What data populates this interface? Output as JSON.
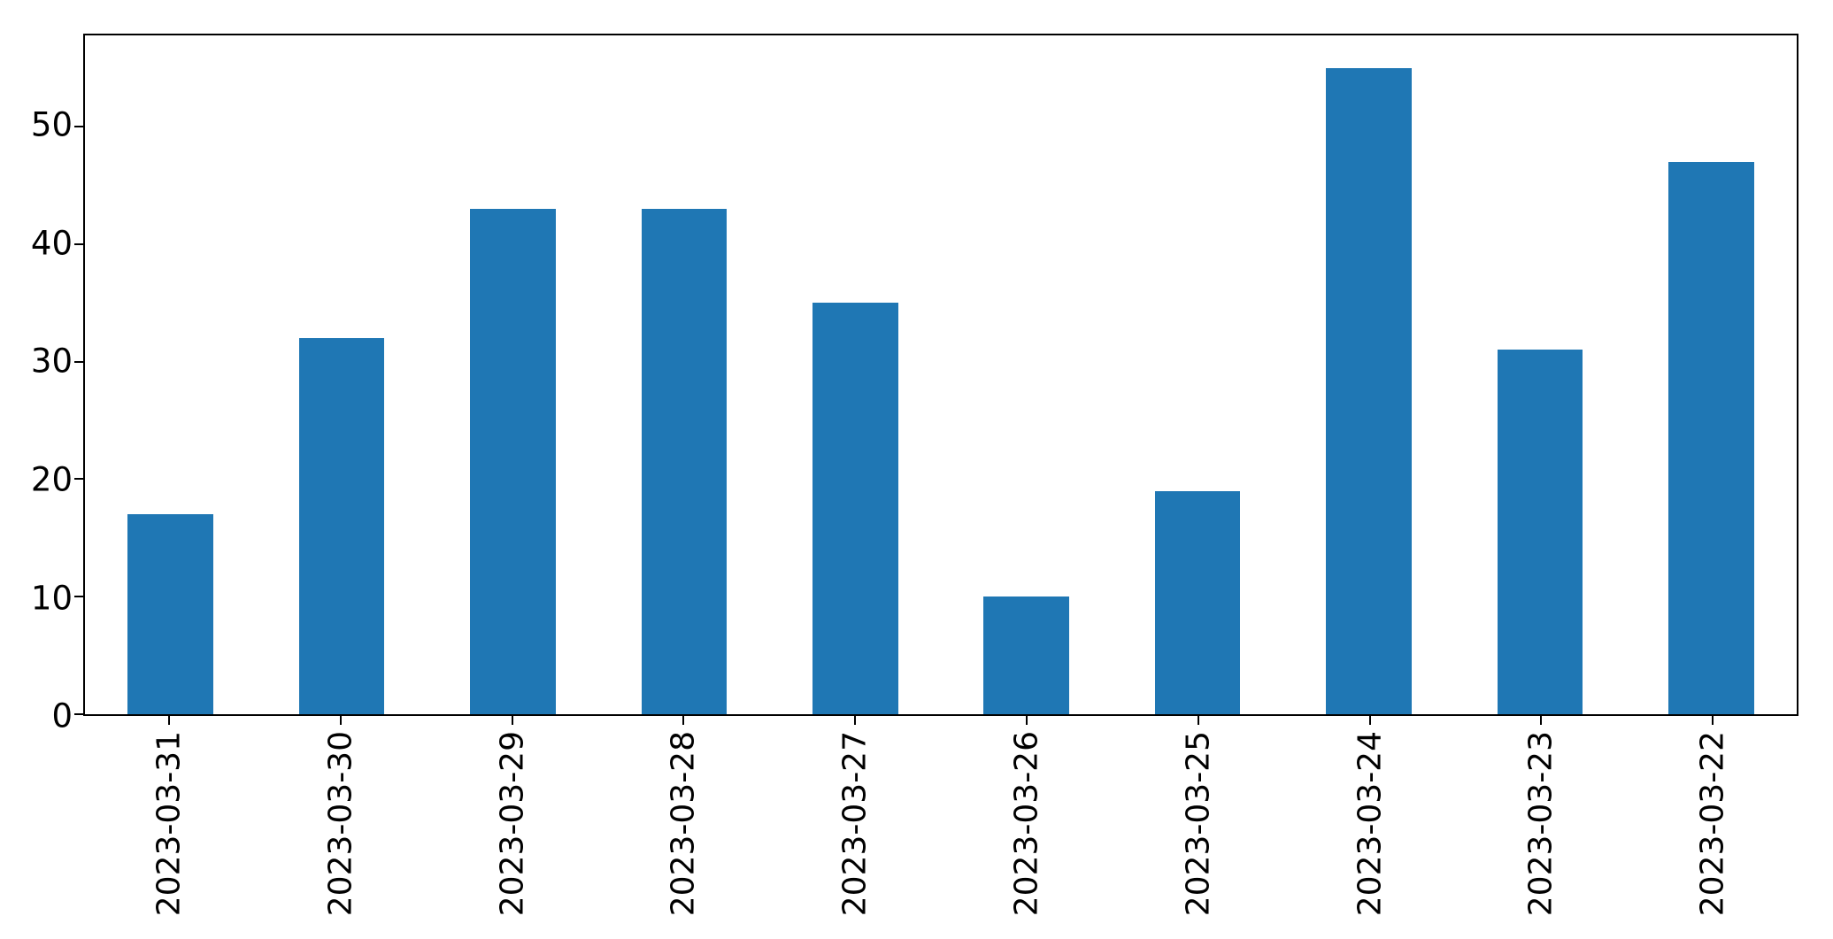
{
  "chart_data": {
    "type": "bar",
    "title": "",
    "xlabel": "",
    "ylabel": "",
    "categories": [
      "2023-03-31",
      "2023-03-30",
      "2023-03-29",
      "2023-03-28",
      "2023-03-27",
      "2023-03-26",
      "2023-03-25",
      "2023-03-24",
      "2023-03-23",
      "2023-03-22"
    ],
    "values": [
      17,
      32,
      43,
      43,
      35,
      10,
      19,
      55,
      31,
      47
    ],
    "series_color": "#1f77b4",
    "axis_color": "#000000",
    "ylim": [
      0,
      57.75
    ],
    "yticks": [
      0,
      10,
      20,
      30,
      40,
      50
    ],
    "x_tick_rotation_deg": 90,
    "bar_width_fraction": 0.5,
    "grid": false,
    "legend": "none"
  }
}
